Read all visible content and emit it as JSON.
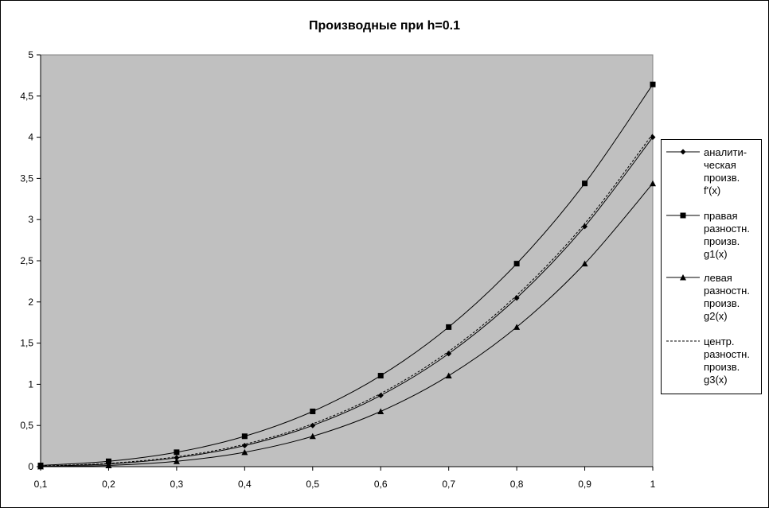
{
  "chart_data": {
    "type": "line",
    "title": "Производные при h=0.1",
    "xlabel": "",
    "ylabel": "",
    "x": [
      0.1,
      0.2,
      0.3,
      0.4,
      0.5,
      0.6,
      0.7,
      0.8,
      0.9,
      1.0
    ],
    "x_tick_labels": [
      "0,1",
      "0,2",
      "0,3",
      "0,4",
      "0,5",
      "0,6",
      "0,7",
      "0,8",
      "0,9",
      "1"
    ],
    "y_tick_labels": [
      "0",
      "0,5",
      "1",
      "1,5",
      "2",
      "2,5",
      "3",
      "3,5",
      "4",
      "4,5",
      "5"
    ],
    "y_ticks": [
      0,
      0.5,
      1,
      1.5,
      2,
      2.5,
      3,
      3.5,
      4,
      4.5,
      5
    ],
    "ylim": [
      0,
      5
    ],
    "grid": false,
    "plot_background": "#c0c0c0",
    "legend_position": "right",
    "series": [
      {
        "name": "аналити-\nческая\nпроизв.\nf'(x)",
        "marker": "diamond",
        "dash": "solid",
        "values": [
          0.004,
          0.032,
          0.108,
          0.256,
          0.5,
          0.864,
          1.372,
          2.048,
          2.916,
          4.0
        ]
      },
      {
        "name": "правая\nразностн.\nпроизв.\ng1(x)",
        "marker": "square",
        "dash": "solid",
        "values": [
          0.015,
          0.065,
          0.175,
          0.369,
          0.671,
          1.105,
          1.695,
          2.465,
          3.439,
          4.641
        ]
      },
      {
        "name": "левая\nразностн.\nпроизв.\ng2(x)",
        "marker": "triangle",
        "dash": "solid",
        "values": [
          0.001,
          0.015,
          0.065,
          0.175,
          0.369,
          0.671,
          1.105,
          1.695,
          2.465,
          3.439
        ]
      },
      {
        "name": "центр.\nразностн.\nпроизв.\ng3(x)",
        "marker": "none",
        "dash": "dashed",
        "values": [
          0.008,
          0.04,
          0.12,
          0.272,
          0.52,
          0.888,
          1.4,
          2.08,
          2.952,
          4.04
        ]
      }
    ]
  }
}
